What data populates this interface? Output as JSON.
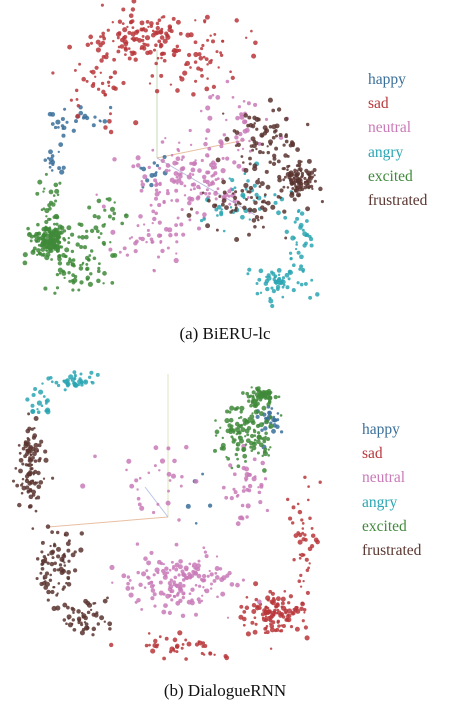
{
  "figure": {
    "legend_entries": [
      {
        "label": "happy",
        "color": "#3a6f9a"
      },
      {
        "label": "sad",
        "color": "#b8363a"
      },
      {
        "label": "neutral",
        "color": "#c97ab7"
      },
      {
        "label": "angry",
        "color": "#2aa6b3"
      },
      {
        "label": "excited",
        "color": "#3f8a3a"
      },
      {
        "label": "frustrated",
        "color": "#5a3530"
      }
    ]
  },
  "chart_data": [
    {
      "type": "scatter",
      "caption": "(a) BiERU-lc",
      "title": "",
      "xlabel": "",
      "ylabel": "",
      "grid": false,
      "legend_position": "right",
      "series": [
        {
          "name": "happy",
          "clusters": [
            [
              55,
              120,
              12,
              20,
              18
            ],
            [
              45,
              160,
              10,
              12,
              14
            ],
            [
              85,
              110,
              15,
              10,
              10
            ],
            [
              140,
              170,
              15,
              15,
              12
            ]
          ]
        },
        {
          "name": "sad",
          "clusters": [
            [
              130,
              35,
              40,
              25,
              120
            ],
            [
              190,
              55,
              35,
              30,
              60
            ],
            [
              95,
              80,
              30,
              30,
              40
            ]
          ]
        },
        {
          "name": "neutral",
          "clusters": [
            [
              180,
              175,
              50,
              30,
              150
            ],
            [
              220,
              120,
              30,
              30,
              40
            ],
            [
              140,
              235,
              30,
              25,
              40
            ]
          ]
        },
        {
          "name": "angry",
          "clusters": [
            [
              270,
              275,
              20,
              15,
              60
            ],
            [
              230,
              200,
              40,
              25,
              40
            ],
            [
              290,
              230,
              10,
              25,
              30
            ]
          ]
        },
        {
          "name": "excited",
          "clusters": [
            [
              38,
              235,
              15,
              15,
              150
            ],
            [
              65,
              255,
              30,
              30,
              90
            ],
            [
              40,
              195,
              10,
              20,
              20
            ],
            [
              100,
              220,
              20,
              30,
              20
            ]
          ]
        },
        {
          "name": "frustrated",
          "clusters": [
            [
              290,
              175,
              15,
              15,
              100
            ],
            [
              255,
              140,
              30,
              30,
              80
            ],
            [
              235,
              195,
              40,
              25,
              60
            ]
          ]
        }
      ]
    },
    {
      "type": "scatter",
      "caption": "(b) DialogueRNN",
      "title": "",
      "xlabel": "",
      "ylabel": "",
      "grid": false,
      "legend_position": "right",
      "series": [
        {
          "name": "happy",
          "clusters": [
            [
              265,
              55,
              10,
              15,
              30
            ],
            [
              190,
              130,
              10,
              20,
              5
            ]
          ]
        },
        {
          "name": "sad",
          "clusters": [
            [
              270,
              245,
              25,
              20,
              120
            ],
            [
              300,
              170,
              15,
              40,
              40
            ],
            [
              175,
              280,
              40,
              10,
              40
            ]
          ]
        },
        {
          "name": "neutral",
          "clusters": [
            [
              175,
              215,
              50,
              22,
              160
            ],
            [
              240,
              120,
              15,
              30,
              40
            ],
            [
              150,
              110,
              40,
              40,
              30
            ]
          ]
        },
        {
          "name": "angry",
          "clusters": [
            [
              70,
              15,
              20,
              8,
              40
            ],
            [
              35,
              35,
              10,
              12,
              20
            ]
          ]
        },
        {
          "name": "excited",
          "clusters": [
            [
              240,
              65,
              25,
              25,
              120
            ],
            [
              255,
              30,
              12,
              8,
              60
            ]
          ]
        },
        {
          "name": "frustrated",
          "clusters": [
            [
              25,
              100,
              10,
              40,
              100
            ],
            [
              50,
              200,
              20,
              30,
              80
            ],
            [
              80,
              250,
              20,
              15,
              50
            ]
          ]
        }
      ]
    }
  ]
}
